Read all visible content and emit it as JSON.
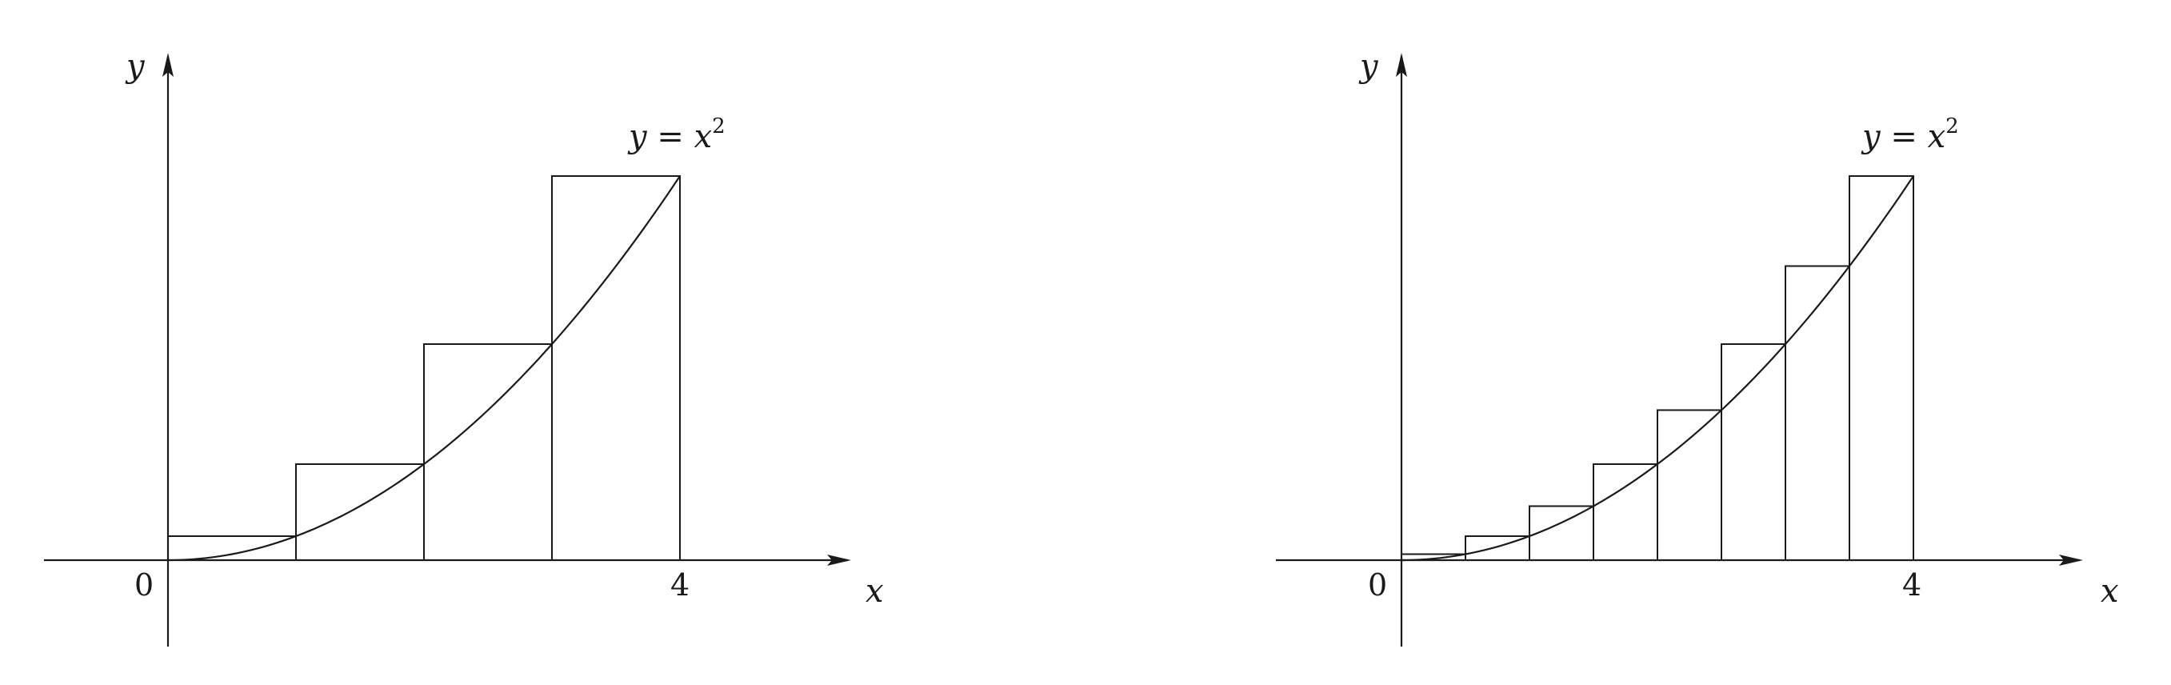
{
  "figure_left": {
    "x_axis_label": "x",
    "y_axis_label": "y",
    "origin_label": "0",
    "x_tick_label": "4",
    "curve_label": {
      "y": "y",
      "equals": " = ",
      "x": "x",
      "exponent": "2"
    },
    "function": "x^2",
    "interval": [
      0,
      4
    ],
    "subintervals": 4,
    "sample_point": "right endpoint"
  },
  "figure_right": {
    "x_axis_label": "x",
    "y_axis_label": "y",
    "origin_label": "0",
    "x_tick_label": "4",
    "curve_label": {
      "y": "y",
      "equals": " = ",
      "x": "x",
      "exponent": "2"
    },
    "function": "x^2",
    "interval": [
      0,
      4
    ],
    "subintervals": 8,
    "sample_point": "right endpoint"
  }
}
